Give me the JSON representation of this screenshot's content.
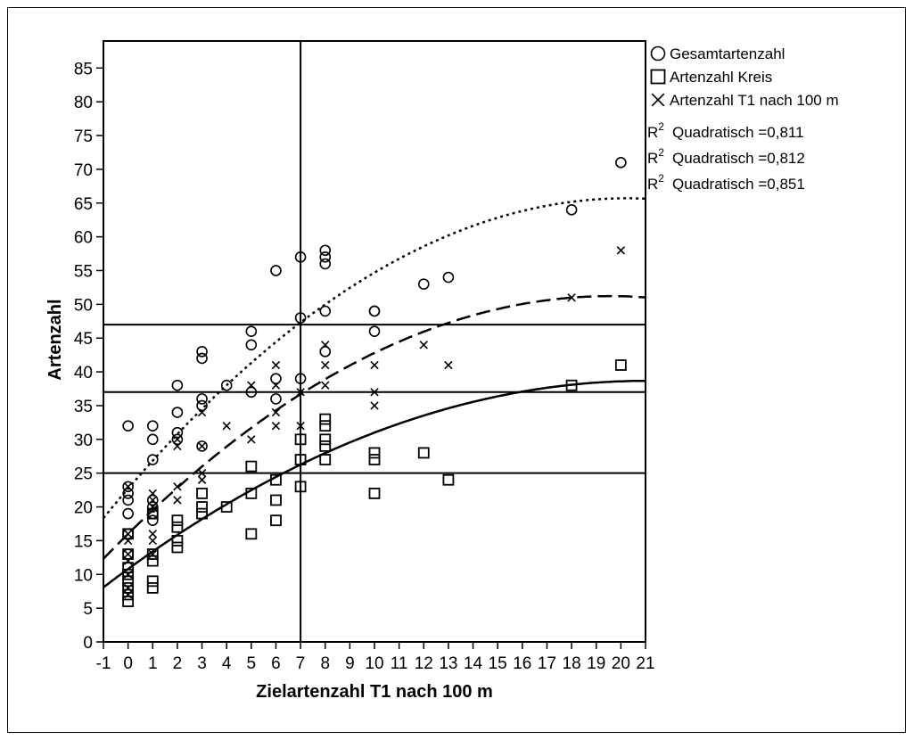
{
  "chart_data": {
    "type": "scatter",
    "title": "",
    "xlabel": "Zielartenzahl T1 nach 100 m",
    "ylabel": "Artenzahl",
    "xlim": [
      -1,
      21
    ],
    "ylim": [
      0,
      89
    ],
    "xticks": [
      "-1",
      "0",
      "1",
      "2",
      "3",
      "4",
      "5",
      "6",
      "7",
      "8",
      "9",
      "10",
      "11",
      "12",
      "13",
      "14",
      "15",
      "16",
      "17",
      "18",
      "19",
      "20",
      "21"
    ],
    "yticks": [
      "0",
      "5",
      "10",
      "15",
      "20",
      "25",
      "30",
      "35",
      "40",
      "45",
      "50",
      "55",
      "60",
      "65",
      "70",
      "75",
      "80",
      "85"
    ],
    "grid": false,
    "reference_lines": {
      "x": [
        7
      ],
      "y": [
        47,
        37,
        25
      ]
    },
    "legend": {
      "position": "right",
      "entries": [
        {
          "symbol": "circle",
          "label": "Gesamtartenzahl"
        },
        {
          "symbol": "square",
          "label": "Artenzahl Kreis"
        },
        {
          "symbol": "cross",
          "label": "Artenzahl T1 nach 100 m"
        }
      ],
      "fit_labels": [
        {
          "r2": "R",
          "sup": "2",
          "text": "Quadratisch =0,811"
        },
        {
          "r2": "R",
          "sup": "2",
          "text": "Quadratisch =0,812"
        },
        {
          "r2": "R",
          "sup": "2",
          "text": "Quadratisch =0,851"
        }
      ]
    },
    "series": [
      {
        "name": "Gesamtartenzahl",
        "marker": "circle",
        "fit": {
          "style": "dotted",
          "coef": [
            22.7,
            4.25,
            -0.105
          ]
        },
        "points": [
          [
            0,
            32
          ],
          [
            0,
            23
          ],
          [
            0,
            22
          ],
          [
            0,
            21
          ],
          [
            0,
            19
          ],
          [
            0,
            16
          ],
          [
            0,
            13
          ],
          [
            1,
            32
          ],
          [
            1,
            30
          ],
          [
            1,
            27
          ],
          [
            1,
            21
          ],
          [
            1,
            20
          ],
          [
            1,
            19
          ],
          [
            1,
            18
          ],
          [
            2,
            38
          ],
          [
            2,
            34
          ],
          [
            2,
            31
          ],
          [
            2,
            30
          ],
          [
            3,
            43
          ],
          [
            3,
            42
          ],
          [
            3,
            36
          ],
          [
            3,
            35
          ],
          [
            3,
            29
          ],
          [
            4,
            38
          ],
          [
            5,
            46
          ],
          [
            5,
            44
          ],
          [
            5,
            37
          ],
          [
            6,
            55
          ],
          [
            6,
            39
          ],
          [
            6,
            36
          ],
          [
            7,
            57
          ],
          [
            7,
            48
          ],
          [
            7,
            39
          ],
          [
            8,
            58
          ],
          [
            8,
            57
          ],
          [
            8,
            56
          ],
          [
            8,
            49
          ],
          [
            8,
            43
          ],
          [
            10,
            49
          ],
          [
            10,
            49
          ],
          [
            10,
            46
          ],
          [
            12,
            53
          ],
          [
            13,
            54
          ],
          [
            18,
            64
          ],
          [
            20,
            71
          ]
        ]
      },
      {
        "name": "Artenzahl Kreis",
        "marker": "square",
        "fit": {
          "style": "solid",
          "coef": [
            10.8,
            2.65,
            -0.063
          ]
        },
        "points": [
          [
            0,
            16
          ],
          [
            0,
            13
          ],
          [
            0,
            11
          ],
          [
            0,
            10
          ],
          [
            0,
            9
          ],
          [
            0,
            8
          ],
          [
            0,
            7
          ],
          [
            0,
            6
          ],
          [
            1,
            19
          ],
          [
            1,
            13
          ],
          [
            1,
            12
          ],
          [
            1,
            9
          ],
          [
            1,
            8
          ],
          [
            2,
            18
          ],
          [
            2,
            17
          ],
          [
            2,
            15
          ],
          [
            2,
            14
          ],
          [
            3,
            22
          ],
          [
            3,
            20
          ],
          [
            3,
            19
          ],
          [
            4,
            20
          ],
          [
            5,
            26
          ],
          [
            5,
            22
          ],
          [
            5,
            16
          ],
          [
            6,
            24
          ],
          [
            6,
            21
          ],
          [
            6,
            18
          ],
          [
            7,
            30
          ],
          [
            7,
            27
          ],
          [
            7,
            23
          ],
          [
            8,
            33
          ],
          [
            8,
            32
          ],
          [
            8,
            30
          ],
          [
            8,
            29
          ],
          [
            8,
            27
          ],
          [
            10,
            28
          ],
          [
            10,
            27
          ],
          [
            10,
            22
          ],
          [
            12,
            28
          ],
          [
            13,
            24
          ],
          [
            18,
            38
          ],
          [
            20,
            41
          ]
        ]
      },
      {
        "name": "Artenzahl T1 nach 100 m",
        "marker": "cross",
        "fit": {
          "style": "dashed",
          "coef": [
            16.0,
            3.6,
            -0.092
          ]
        },
        "points": [
          [
            0,
            23
          ],
          [
            0,
            16
          ],
          [
            0,
            15
          ],
          [
            0,
            13
          ],
          [
            0,
            12
          ],
          [
            0,
            10
          ],
          [
            0,
            8
          ],
          [
            0,
            7
          ],
          [
            1,
            22
          ],
          [
            1,
            21
          ],
          [
            1,
            20
          ],
          [
            1,
            16
          ],
          [
            1,
            15
          ],
          [
            1,
            13
          ],
          [
            2,
            30
          ],
          [
            2,
            29
          ],
          [
            2,
            23
          ],
          [
            2,
            21
          ],
          [
            3,
            34
          ],
          [
            3,
            29
          ],
          [
            3,
            25
          ],
          [
            3,
            24
          ],
          [
            4,
            32
          ],
          [
            5,
            38
          ],
          [
            5,
            30
          ],
          [
            6,
            41
          ],
          [
            6,
            38
          ],
          [
            6,
            34
          ],
          [
            6,
            32
          ],
          [
            7,
            37
          ],
          [
            7,
            32
          ],
          [
            8,
            44
          ],
          [
            8,
            41
          ],
          [
            8,
            38
          ],
          [
            10,
            41
          ],
          [
            10,
            37
          ],
          [
            10,
            35
          ],
          [
            12,
            44
          ],
          [
            13,
            41
          ],
          [
            18,
            51
          ],
          [
            20,
            58
          ]
        ]
      }
    ]
  }
}
